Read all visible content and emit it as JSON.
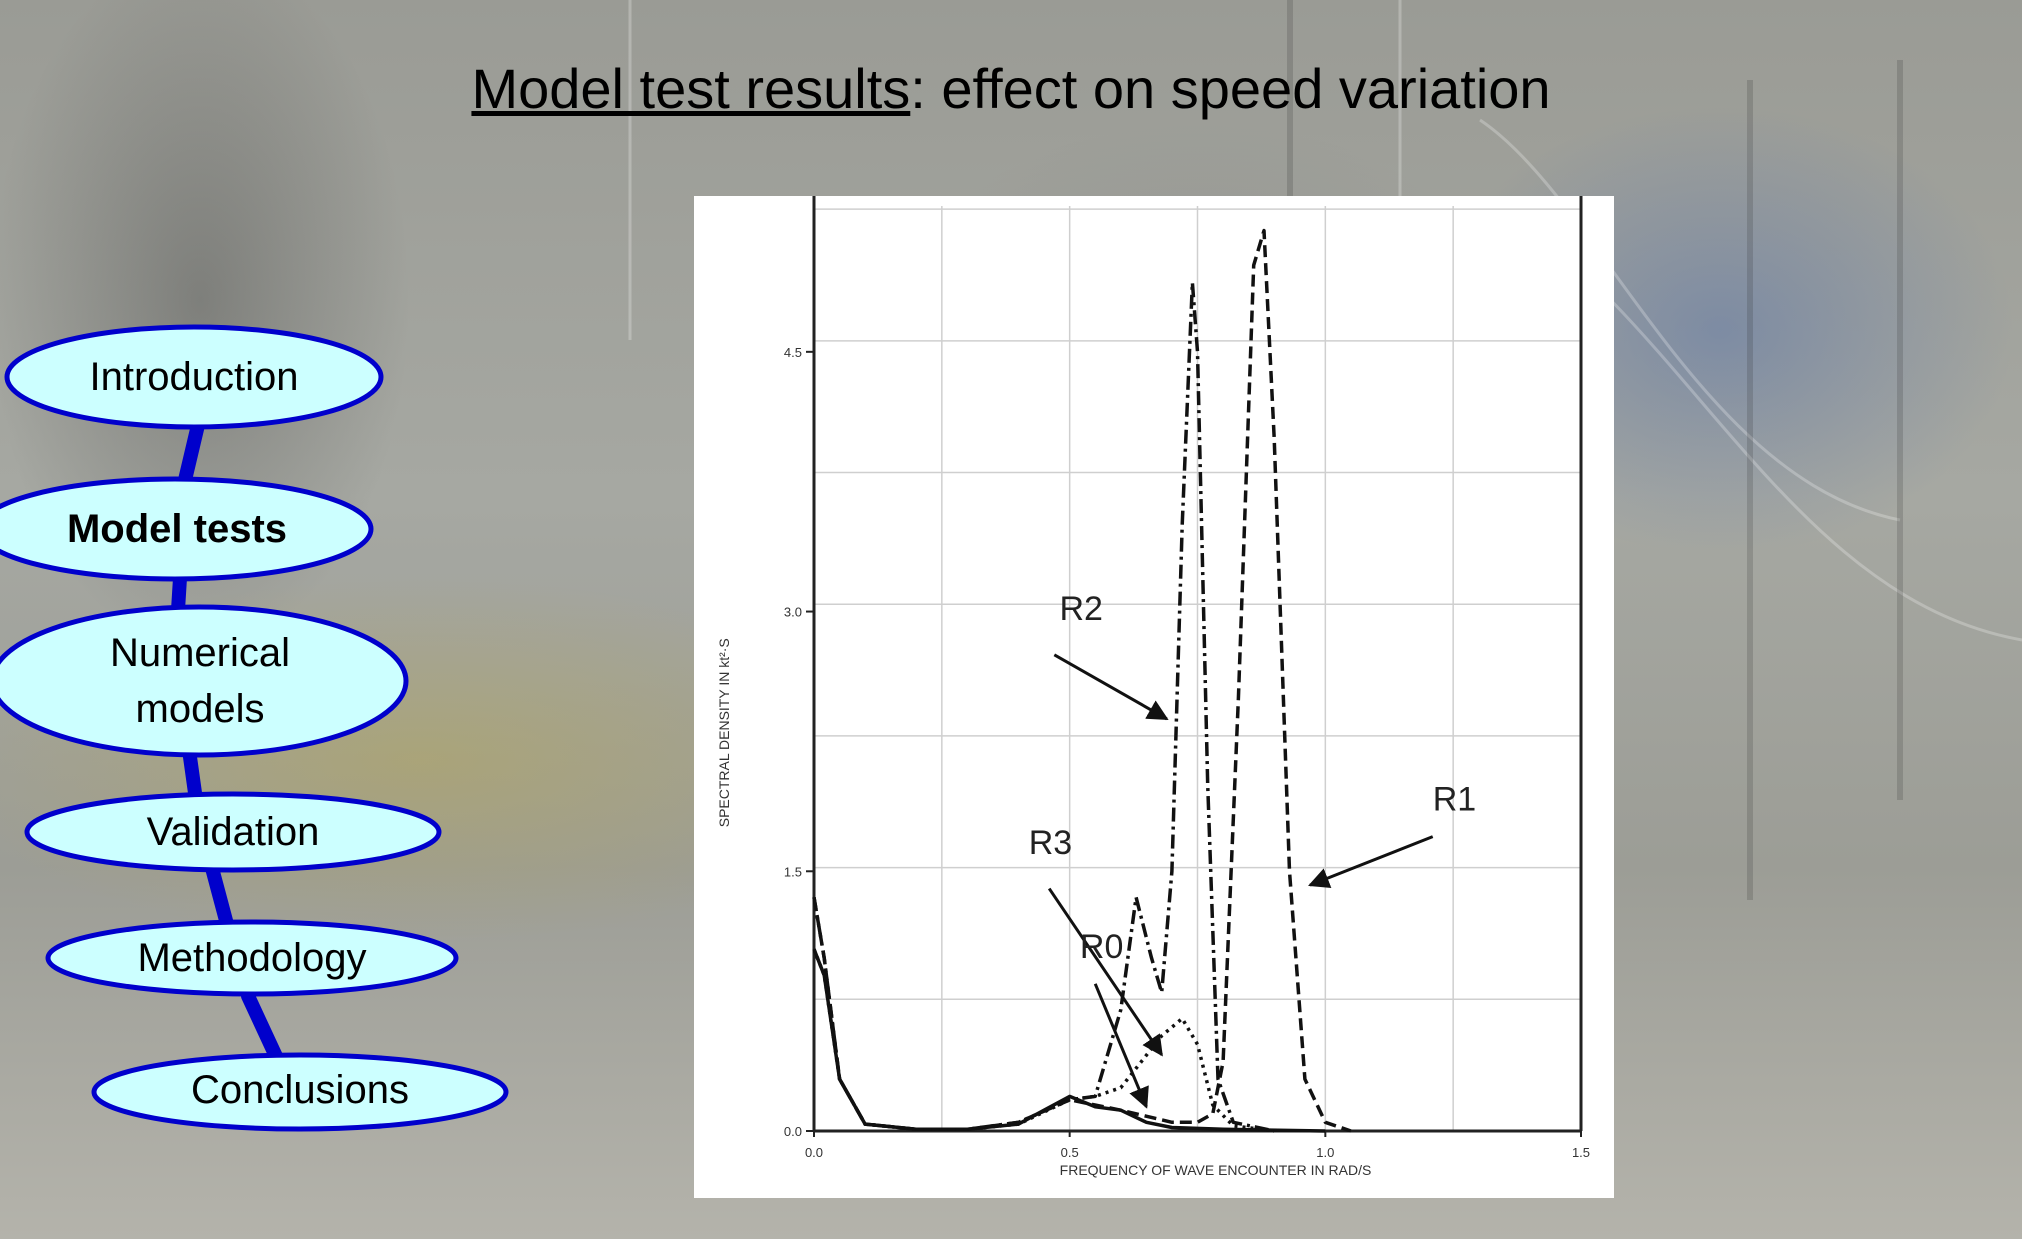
{
  "title": {
    "underlined": "Model test results",
    "rest": ": effect on speed variation"
  },
  "nav": {
    "items": [
      {
        "label": "Introduction",
        "active": false
      },
      {
        "label": "Model tests",
        "active": true
      },
      {
        "label": "Numerical models",
        "active": false
      },
      {
        "label": "Validation",
        "active": false
      },
      {
        "label": "Methodology",
        "active": false
      },
      {
        "label": "Conclusions",
        "active": false
      }
    ]
  },
  "colors": {
    "nav_fill": "#ccffff",
    "nav_border": "#0000cc",
    "nav_connector": "#0000cc"
  },
  "chart_data": {
    "type": "line",
    "xlabel": "FREQUENCY OF WAVE ENCOUNTER  IN RAD/S",
    "ylabel": "SPECTRAL DENSITY  IN kt²·S",
    "xlim": [
      0,
      1.5
    ],
    "ylim": [
      0,
      5.4
    ],
    "xticks": [
      "0.0",
      "0.5",
      "1.0",
      "1.5"
    ],
    "yticks": [
      "0.0",
      "1.5",
      "3.0",
      "4.5"
    ],
    "grid": true,
    "annotations": [
      "R2",
      "R1",
      "R3",
      "R0"
    ],
    "series": [
      {
        "name": "R0",
        "style": "solid",
        "x": [
          0,
          0.02,
          0.05,
          0.1,
          0.2,
          0.3,
          0.4,
          0.45,
          0.5,
          0.55,
          0.6,
          0.65,
          0.7,
          0.8,
          1.0
        ],
        "y": [
          1.05,
          0.9,
          0.3,
          0.04,
          0.01,
          0.01,
          0.04,
          0.12,
          0.2,
          0.14,
          0.12,
          0.05,
          0.02,
          0.01,
          0.0
        ]
      },
      {
        "name": "R1",
        "style": "dashed",
        "x": [
          0,
          0.02,
          0.05,
          0.1,
          0.2,
          0.3,
          0.4,
          0.5,
          0.6,
          0.7,
          0.75,
          0.78,
          0.8,
          0.83,
          0.86,
          0.88,
          0.9,
          0.93,
          0.96,
          1.0,
          1.05
        ],
        "y": [
          1.35,
          1.0,
          0.3,
          0.04,
          0.01,
          0.01,
          0.05,
          0.18,
          0.12,
          0.05,
          0.05,
          0.1,
          0.4,
          2.5,
          5.0,
          5.2,
          4.0,
          1.5,
          0.3,
          0.05,
          0.0
        ]
      },
      {
        "name": "R2",
        "style": "dashdot",
        "x": [
          0,
          0.02,
          0.05,
          0.1,
          0.2,
          0.3,
          0.4,
          0.5,
          0.55,
          0.6,
          0.63,
          0.66,
          0.68,
          0.7,
          0.72,
          0.74,
          0.75,
          0.77,
          0.79,
          0.82,
          0.9
        ],
        "y": [
          1.35,
          1.0,
          0.3,
          0.04,
          0.01,
          0.01,
          0.05,
          0.18,
          0.2,
          0.7,
          1.35,
          1.0,
          0.8,
          1.5,
          3.5,
          4.9,
          4.5,
          2.0,
          0.3,
          0.05,
          0.0
        ]
      },
      {
        "name": "R3",
        "style": "dotted",
        "x": [
          0,
          0.02,
          0.05,
          0.1,
          0.2,
          0.3,
          0.4,
          0.5,
          0.55,
          0.6,
          0.64,
          0.68,
          0.72,
          0.75,
          0.78,
          0.82,
          0.9
        ],
        "y": [
          1.05,
          0.9,
          0.3,
          0.04,
          0.01,
          0.01,
          0.04,
          0.18,
          0.2,
          0.25,
          0.4,
          0.55,
          0.65,
          0.5,
          0.15,
          0.03,
          0.0
        ]
      }
    ]
  }
}
